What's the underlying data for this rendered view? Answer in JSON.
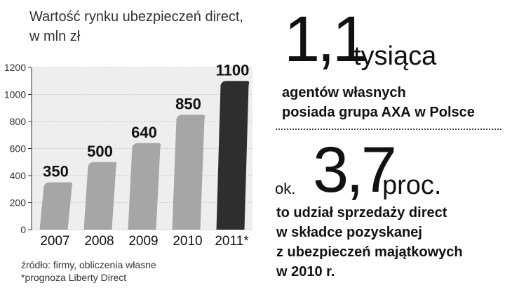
{
  "chart_data": {
    "type": "bar",
    "title": "Wartość rynku ubezpieczeń direct, w mln zł",
    "title_lines": [
      "Wartość rynku ubezpieczeń direct,",
      "w mln zł"
    ],
    "categories": [
      "2007",
      "2008",
      "2009",
      "2010",
      "2011*"
    ],
    "values": [
      350,
      500,
      640,
      850,
      1100
    ],
    "data_labels": [
      "350",
      "500",
      "640",
      "850",
      "1100"
    ],
    "yticks": [
      "0",
      "200",
      "400",
      "600",
      "800",
      "1000",
      "1200"
    ],
    "ylim": [
      0,
      1200
    ],
    "xlabel": "",
    "ylabel": "",
    "grid": true,
    "highlight_category": "2011*",
    "colors": {
      "bar": "#a6a6a6",
      "bar_highlight": "#2e2e2e",
      "bar_shade": "#8c8c8c",
      "grid": "#c8c8c8",
      "band": "#eeeeee"
    }
  },
  "source": {
    "line1": "źródło: firmy, obliczenia własne",
    "line2": "*prognoza Liberty Direct"
  },
  "stat1": {
    "number": "1,1",
    "unit": "tysiąca",
    "desc_line1": "agentów własnych",
    "desc_line2_a": "posiada ",
    "desc_line2_b": "grupa AXA",
    "desc_line2_c": " w Polsce"
  },
  "stat2": {
    "prefix": "ok.",
    "number": "3,7",
    "unit": "proc.",
    "desc_lines": [
      "to udział sprzedaży direct",
      "w składce pozyskanej",
      "z ubezpieczeń majątkowych",
      "w 2010 r."
    ]
  }
}
